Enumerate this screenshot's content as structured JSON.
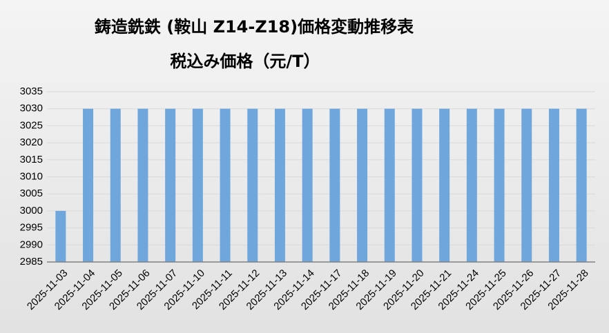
{
  "chart_data": {
    "type": "bar",
    "title": "鋳造銑鉄 (鞍山 Z14-Z18)価格変動推移表",
    "subtitle": "税込み価格（元/T）",
    "categories": [
      "2025-11-03",
      "2025-11-04",
      "2025-11-05",
      "2025-11-06",
      "2025-11-07",
      "2025-11-10",
      "2025-11-11",
      "2025-11-12",
      "2025-11-13",
      "2025-11-14",
      "2025-11-17",
      "2025-11-18",
      "2025-11-19",
      "2025-11-20",
      "2025-11-21",
      "2025-11-24",
      "2025-11-25",
      "2025-11-26",
      "2025-11-27",
      "2025-11-28"
    ],
    "values": [
      3000,
      3030,
      3030,
      3030,
      3030,
      3030,
      3030,
      3030,
      3030,
      3030,
      3030,
      3030,
      3030,
      3030,
      3030,
      3030,
      3030,
      3030,
      3030,
      3030
    ],
    "color": "#6fa6dc",
    "ylim": [
      2985,
      3035
    ],
    "yticks": [
      2985,
      2990,
      2995,
      3000,
      3005,
      3010,
      3015,
      3020,
      3025,
      3030,
      3035
    ],
    "grid": true
  }
}
